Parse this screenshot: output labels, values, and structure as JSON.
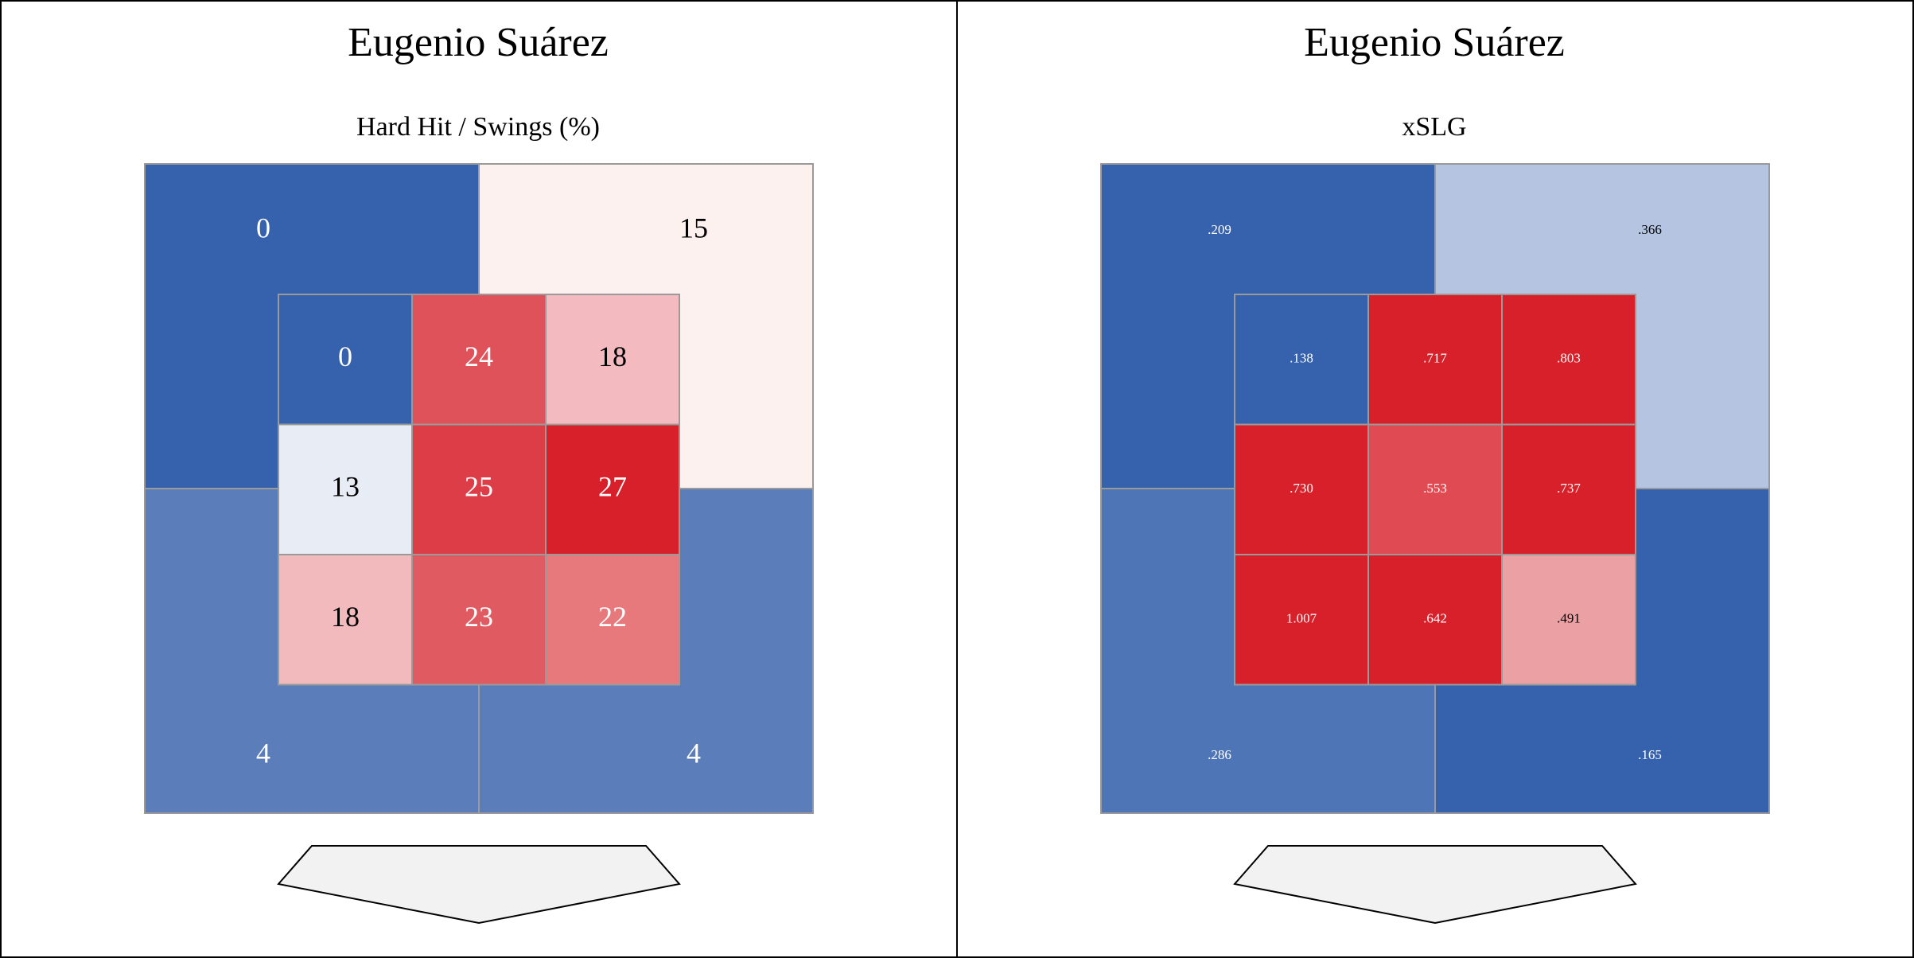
{
  "chart_data": [
    {
      "type": "heatmap",
      "title": "Eugenio Suárez",
      "subtitle": "Hard Hit / Swings (%)",
      "inner_zone": {
        "rows": [
          [
            "0",
            "24",
            "18"
          ],
          [
            "13",
            "25",
            "27"
          ],
          [
            "18",
            "23",
            "22"
          ]
        ],
        "values": [
          [
            0,
            24,
            18
          ],
          [
            13,
            25,
            27
          ],
          [
            18,
            23,
            22
          ]
        ]
      },
      "outer_zone": {
        "top_left": {
          "label": "0",
          "value": 0
        },
        "top_right": {
          "label": "15",
          "value": 15
        },
        "bottom_left": {
          "label": "4",
          "value": 4
        },
        "bottom_right": {
          "label": "4",
          "value": 4
        }
      },
      "colors": {
        "inner": [
          [
            "#3661ad",
            "#e0525a",
            "#f3bbbf"
          ],
          [
            "#e8edf5",
            "#dc3d47",
            "#d72029"
          ],
          [
            "#f2babd",
            "#e05a61",
            "#e7787c"
          ]
        ],
        "outer": {
          "top_left": "#3661ad",
          "top_right": "#fdf1f0",
          "bottom_left": "#5b7ebb",
          "bottom_right": "#5b7ebb"
        }
      }
    },
    {
      "type": "heatmap",
      "title": "Eugenio Suárez",
      "subtitle": "xSLG",
      "inner_zone": {
        "rows": [
          [
            ".138",
            ".717",
            ".803"
          ],
          [
            ".730",
            ".553",
            ".737"
          ],
          [
            "1.007",
            ".642",
            ".491"
          ]
        ],
        "values": [
          [
            0.138,
            0.717,
            0.803
          ],
          [
            0.73,
            0.553,
            0.737
          ],
          [
            1.007,
            0.642,
            0.491
          ]
        ]
      },
      "outer_zone": {
        "top_left": {
          "label": ".209",
          "value": 0.209
        },
        "top_right": {
          "label": ".366",
          "value": 0.366
        },
        "bottom_left": {
          "label": ".286",
          "value": 0.286
        },
        "bottom_right": {
          "label": ".165",
          "value": 0.165
        }
      },
      "colors": {
        "inner": [
          [
            "#3661ad",
            "#d72029",
            "#d72029"
          ],
          [
            "#d72029",
            "#e04a52",
            "#d72029"
          ],
          [
            "#d72029",
            "#d72029",
            "#eba0a3"
          ]
        ],
        "outer": {
          "top_left": "#3661ad",
          "top_right": "#b4c4e1",
          "bottom_left": "#4e75b6",
          "bottom_right": "#3661ad"
        }
      }
    }
  ]
}
